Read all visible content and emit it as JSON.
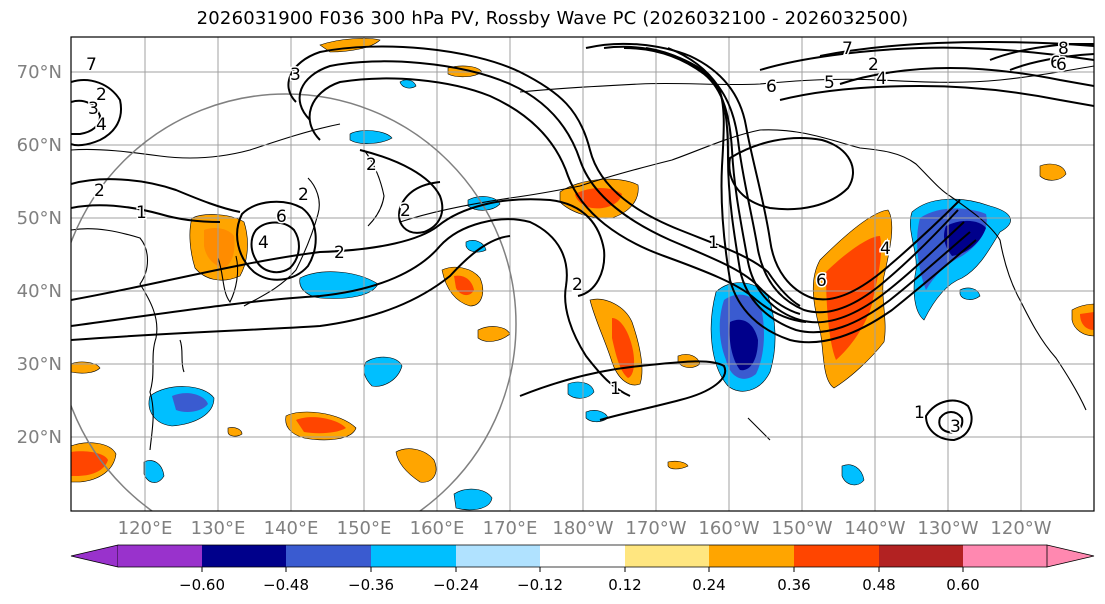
{
  "title": "2026031900 F036 300 hPa PV, Rossby Wave PC (2026032100 - 2026032500)",
  "axes": {
    "latitude_ticks": [
      "70°N",
      "60°N",
      "50°N",
      "40°N",
      "30°N",
      "20°N"
    ],
    "longitude_ticks": [
      "120°E",
      "130°E",
      "140°E",
      "150°E",
      "160°E",
      "170°E",
      "180°W",
      "170°W",
      "160°W",
      "150°W",
      "140°W",
      "130°W",
      "120°W"
    ]
  },
  "colorbar": {
    "ticks": [
      "−0.60",
      "−0.48",
      "−0.36",
      "−0.24",
      "−0.12",
      "0.12",
      "0.24",
      "0.36",
      "0.48",
      "0.60"
    ],
    "colors": [
      "#9932cc",
      "#00008b",
      "#3a5bd0",
      "#00bfff",
      "#b0e2ff",
      "#ffffff",
      "#ffe680",
      "#ffa500",
      "#ff4500",
      "#b22222",
      "#ff88b0"
    ]
  },
  "contour_labels": [
    "7",
    "2",
    "3",
    "4",
    "2",
    "1",
    "3",
    "2",
    "6",
    "2",
    "4",
    "2",
    "2",
    "2",
    "1",
    "6",
    "5",
    "4",
    "7",
    "2",
    "6",
    "4",
    "6",
    "1",
    "1",
    "3",
    "8",
    "6"
  ]
}
